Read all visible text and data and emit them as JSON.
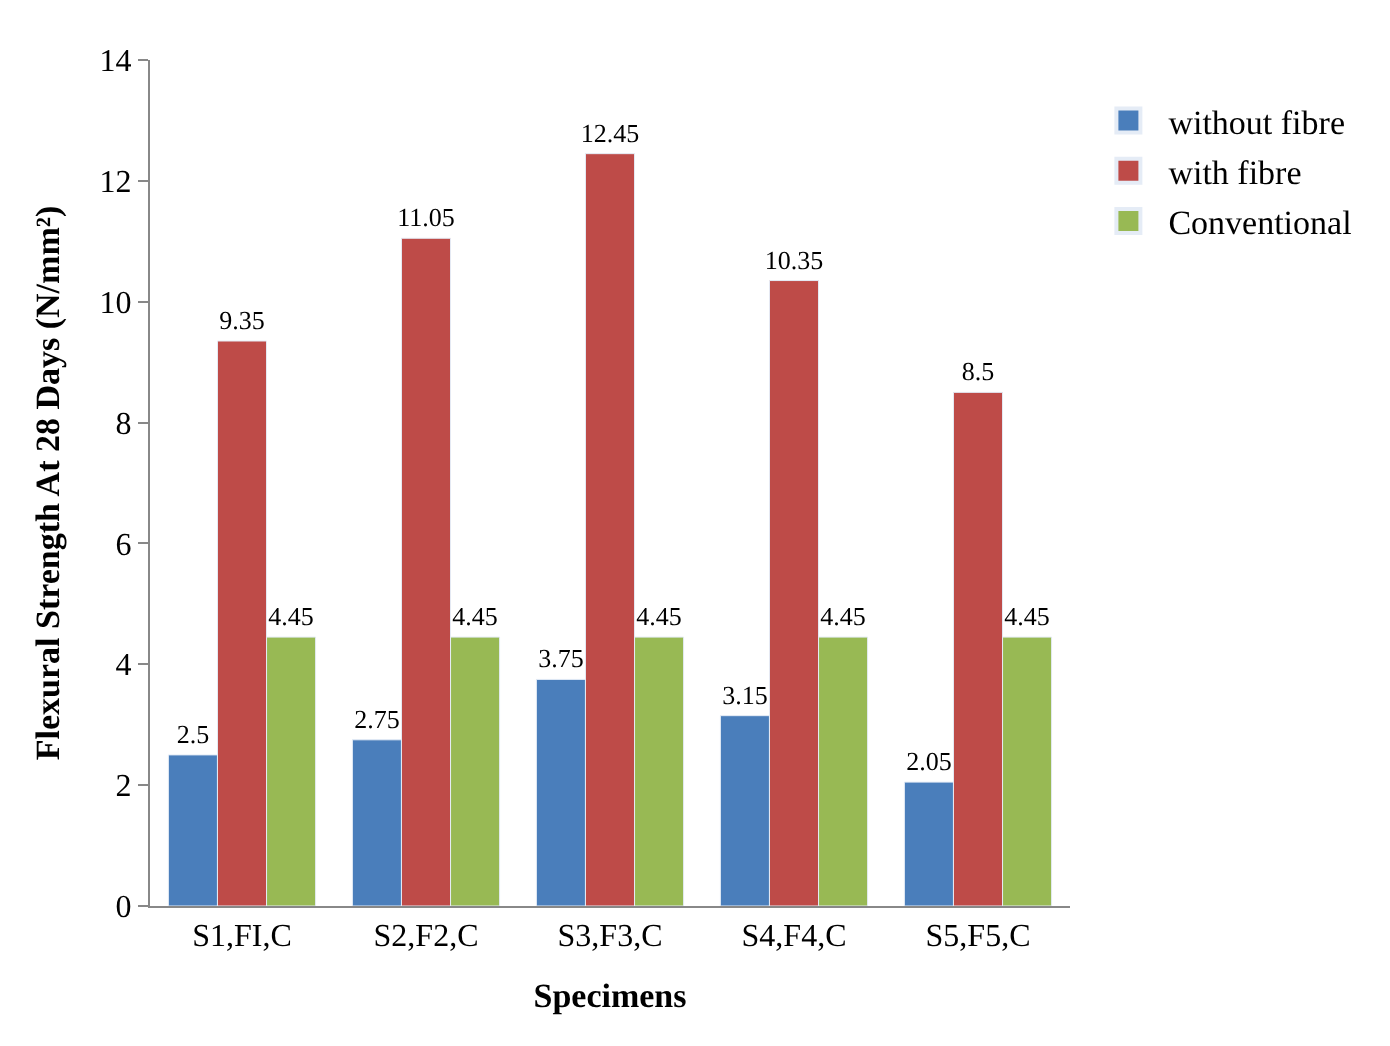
{
  "chart_data": {
    "type": "bar",
    "xlabel": "Specimens",
    "ylabel": "Flexural Strength At 28 Days (N/mm²)",
    "categories": [
      "S1,FI,C",
      "S2,F2,C",
      "S3,F3,C",
      "S4,F4,C",
      "S5,F5,C"
    ],
    "series": [
      {
        "name": "without fibre",
        "color": "#4a7ebb",
        "values": [
          2.5,
          2.75,
          3.75,
          3.15,
          2.05
        ]
      },
      {
        "name": "with fibre",
        "color": "#be4b48",
        "values": [
          9.35,
          11.05,
          12.45,
          10.35,
          8.5
        ]
      },
      {
        "name": "Conventional",
        "color": "#98b954",
        "values": [
          4.45,
          4.45,
          4.45,
          4.45,
          4.45
        ]
      }
    ],
    "ylim": [
      0,
      14
    ],
    "yticks": [
      0,
      2,
      4,
      6,
      8,
      10,
      12,
      14
    ],
    "legend": "top right",
    "data_labels": true
  }
}
